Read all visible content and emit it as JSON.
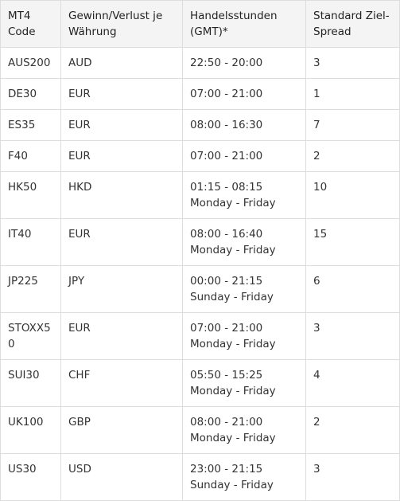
{
  "table": {
    "headers": [
      "MT4 Code",
      "Gewinn/Verlust je Währung",
      "Handelsstunden (GMT)*",
      "Standard Ziel-Spread"
    ],
    "rows": [
      [
        "AUS200",
        "AUD",
        "22:50 - 20:00",
        "3"
      ],
      [
        "DE30",
        "EUR",
        "07:00 - 21:00",
        "1"
      ],
      [
        "ES35",
        "EUR",
        "08:00 - 16:30",
        "7"
      ],
      [
        "F40",
        "EUR",
        "07:00 - 21:00",
        "2"
      ],
      [
        "HK50",
        "HKD",
        "01:15 - 08:15 Monday - Friday",
        "10"
      ],
      [
        "IT40",
        "EUR",
        "08:00 - 16:40 Monday - Friday",
        "15"
      ],
      [
        "JP225",
        "JPY",
        "00:00 - 21:15 Sunday - Friday",
        "6"
      ],
      [
        "STOXX50",
        "EUR",
        "07:00 - 21:00 Monday - Friday",
        "3"
      ],
      [
        "SUI30",
        "CHF",
        "05:50 - 15:25 Monday - Friday",
        "4"
      ],
      [
        "UK100",
        "GBP",
        "08:00 - 21:00 Monday - Friday",
        "2"
      ],
      [
        "US30",
        "USD",
        "23:00 - 21:15 Sunday - Friday",
        "3"
      ]
    ]
  }
}
